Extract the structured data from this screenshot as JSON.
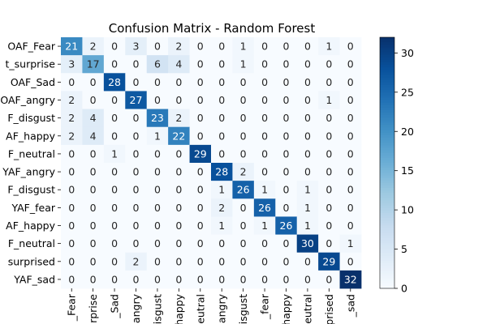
{
  "chart_data": {
    "type": "heatmap",
    "title": "Confusion Matrix - Random Forest",
    "xlabel": "",
    "ylabel": "",
    "row_labels": [
      "OAF_Fear",
      "t_surprise",
      "OAF_Sad",
      "OAF_angry",
      "F_disgust",
      "AF_happy",
      "F_neutral",
      "YAF_angry",
      "F_disgust",
      "YAF_fear",
      "AF_happy",
      "F_neutral",
      "surprised",
      "YAF_sad"
    ],
    "col_labels": [
      "_Fear",
      "rprise",
      "_Sad",
      "angry",
      "disgust",
      "happy",
      "neutral",
      "angry",
      "disgust",
      "_fear",
      "happy",
      "neutral",
      "rprised",
      "_sad"
    ],
    "values": [
      [
        21,
        2,
        0,
        3,
        0,
        2,
        0,
        0,
        1,
        0,
        0,
        0,
        1,
        0
      ],
      [
        3,
        17,
        0,
        0,
        6,
        4,
        0,
        0,
        1,
        0,
        0,
        0,
        0,
        0
      ],
      [
        0,
        0,
        28,
        0,
        0,
        0,
        0,
        0,
        0,
        0,
        0,
        0,
        0,
        0
      ],
      [
        2,
        0,
        0,
        27,
        0,
        0,
        0,
        0,
        0,
        0,
        0,
        0,
        1,
        0
      ],
      [
        2,
        4,
        0,
        0,
        23,
        2,
        0,
        0,
        0,
        0,
        0,
        0,
        0,
        0
      ],
      [
        2,
        4,
        0,
        0,
        1,
        22,
        0,
        0,
        0,
        0,
        0,
        0,
        0,
        0
      ],
      [
        0,
        0,
        1,
        0,
        0,
        0,
        29,
        0,
        0,
        0,
        0,
        0,
        0,
        0
      ],
      [
        0,
        0,
        0,
        0,
        0,
        0,
        0,
        28,
        2,
        0,
        0,
        0,
        0,
        0
      ],
      [
        0,
        0,
        0,
        0,
        0,
        0,
        0,
        1,
        26,
        1,
        0,
        1,
        0,
        0
      ],
      [
        0,
        0,
        0,
        0,
        0,
        0,
        0,
        2,
        0,
        26,
        0,
        1,
        0,
        0
      ],
      [
        0,
        0,
        0,
        0,
        0,
        0,
        0,
        1,
        0,
        1,
        26,
        1,
        0,
        0
      ],
      [
        0,
        0,
        0,
        0,
        0,
        0,
        0,
        0,
        0,
        0,
        0,
        30,
        0,
        1
      ],
      [
        0,
        0,
        0,
        2,
        0,
        0,
        0,
        0,
        0,
        0,
        0,
        0,
        29,
        0
      ],
      [
        0,
        0,
        0,
        0,
        0,
        0,
        0,
        0,
        0,
        0,
        0,
        0,
        0,
        32
      ]
    ],
    "vmin": 0,
    "vmax": 32,
    "colormap": "Blues",
    "colorbar_ticks": [
      0,
      5,
      10,
      15,
      20,
      25,
      30
    ]
  }
}
